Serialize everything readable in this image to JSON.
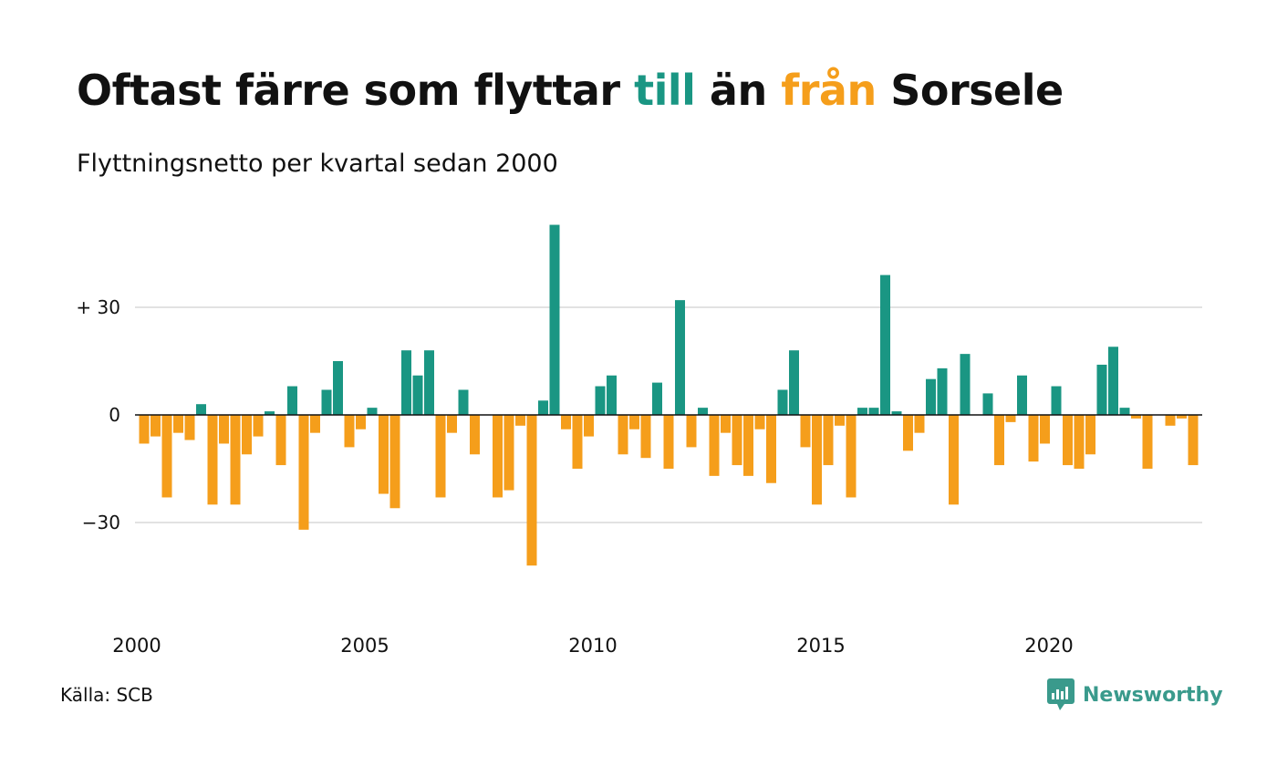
{
  "title": {
    "part1": "Oftast färre som flyttar ",
    "word_in": "till",
    "part2": " än ",
    "word_out": "från",
    "part3": " Sorsele"
  },
  "subtitle": "Flyttningsnetto per kvartal sedan 2000",
  "source": "Källa: SCB",
  "logo": {
    "text": "Newsworthy",
    "icon": "newsworthy-logo-icon"
  },
  "colors": {
    "positive": "#1a9683",
    "negative": "#f59e1b",
    "title_in": "#1a9683",
    "title_out": "#f59e1b",
    "gridline": "#e2e2e2",
    "zero_line": "#111111",
    "logo": "#3a9a8c"
  },
  "chart_data": {
    "type": "bar",
    "title": "Oftast färre som flyttar till än från Sorsele",
    "subtitle": "Flyttningsnetto per kvartal sedan 2000",
    "xlabel": "",
    "ylabel": "",
    "ylim": [
      -50,
      54
    ],
    "y_ticks": [
      {
        "value": 30,
        "label": "+ 30"
      },
      {
        "value": 0,
        "label": "0"
      },
      {
        "value": -30,
        "label": "−30"
      }
    ],
    "x_ticks": [
      {
        "year": 2000,
        "label": "2000"
      },
      {
        "year": 2005,
        "label": "2005"
      },
      {
        "year": 2010,
        "label": "2010"
      },
      {
        "year": 2015,
        "label": "2015"
      },
      {
        "year": 2020,
        "label": "2020"
      }
    ],
    "grid": true,
    "start_year": 2000,
    "periods_per_year": 4,
    "values": [
      -8,
      -6,
      -23,
      -5,
      -7,
      3,
      -25,
      -8,
      -25,
      -11,
      -6,
      1,
      -14,
      8,
      -32,
      -5,
      7,
      15,
      -9,
      -4,
      2,
      -22,
      -26,
      18,
      11,
      18,
      -23,
      -5,
      7,
      -11,
      0,
      -23,
      -21,
      -3,
      -42,
      4,
      53,
      -4,
      -15,
      -6,
      8,
      11,
      -11,
      -4,
      -12,
      9,
      -15,
      32,
      -9,
      2,
      -17,
      -5,
      -14,
      -17,
      -4,
      -19,
      7,
      18,
      -9,
      -25,
      -14,
      -3,
      -23,
      2,
      2,
      39,
      1,
      -10,
      -5,
      10,
      13,
      -25,
      17,
      0,
      6,
      -14,
      -2,
      11,
      -13,
      -8,
      8,
      -14,
      -15,
      -11,
      14,
      19,
      2,
      -1,
      -15,
      0,
      -3,
      -1,
      -14
    ]
  }
}
